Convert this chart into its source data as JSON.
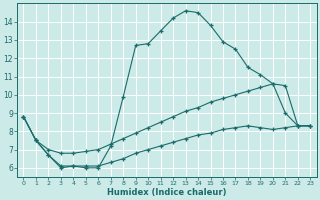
{
  "xlabel": "Humidex (Indice chaleur)",
  "bg_color": "#cceae7",
  "line_color": "#1a6b6b",
  "grid_color": "#ffffff",
  "xlim": [
    -0.5,
    23.5
  ],
  "ylim": [
    5.5,
    15.0
  ],
  "xticks": [
    0,
    1,
    2,
    3,
    4,
    5,
    6,
    7,
    8,
    9,
    10,
    11,
    12,
    13,
    14,
    15,
    16,
    17,
    18,
    19,
    20,
    21,
    22,
    23
  ],
  "yticks": [
    6,
    7,
    8,
    9,
    10,
    11,
    12,
    13,
    14
  ],
  "line1_x": [
    0,
    1,
    2,
    3,
    4,
    5,
    6,
    7,
    8,
    9,
    10,
    11,
    12,
    13,
    14,
    15,
    16,
    17,
    18,
    19,
    20,
    21,
    22,
    23
  ],
  "line1_y": [
    8.8,
    7.5,
    6.7,
    6.0,
    6.1,
    6.0,
    6.0,
    7.2,
    9.9,
    12.7,
    12.8,
    13.5,
    14.2,
    14.6,
    14.5,
    13.8,
    12.9,
    12.5,
    11.5,
    11.1,
    10.6,
    9.0,
    8.3,
    8.3
  ],
  "line2_x": [
    0,
    1,
    2,
    3,
    4,
    5,
    6,
    7,
    8,
    9,
    10,
    11,
    12,
    13,
    14,
    15,
    16,
    17,
    18,
    19,
    20,
    21,
    22,
    23
  ],
  "line2_y": [
    8.8,
    7.5,
    7.0,
    6.8,
    6.8,
    6.9,
    7.0,
    7.3,
    7.6,
    7.9,
    8.2,
    8.5,
    8.8,
    9.1,
    9.3,
    9.6,
    9.8,
    10.0,
    10.2,
    10.4,
    10.6,
    10.5,
    8.3,
    8.3
  ],
  "line3_x": [
    0,
    1,
    2,
    3,
    4,
    5,
    6,
    7,
    8,
    9,
    10,
    11,
    12,
    13,
    14,
    15,
    16,
    17,
    18,
    19,
    20,
    21,
    22,
    23
  ],
  "line3_y": [
    8.8,
    7.5,
    6.7,
    6.1,
    6.1,
    6.1,
    6.1,
    6.3,
    6.5,
    6.8,
    7.0,
    7.2,
    7.4,
    7.6,
    7.8,
    7.9,
    8.1,
    8.2,
    8.3,
    8.2,
    8.1,
    8.2,
    8.3,
    8.3
  ]
}
